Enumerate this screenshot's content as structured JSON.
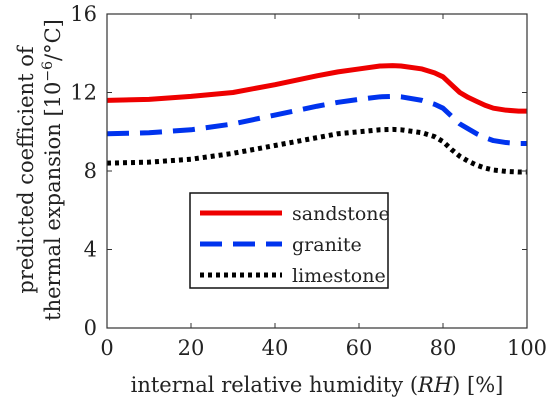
{
  "chart_data": {
    "type": "line",
    "xlabel_parts": {
      "pre": "internal relative humidity (",
      "italic": "RH",
      "post": ") [%]"
    },
    "ylabel_line1": "predicted coefficient of",
    "ylabel_line2_parts": {
      "pre": "thermal expansion [10",
      "sup": "−6",
      "post": "/°C]"
    },
    "xlim": [
      0,
      100
    ],
    "ylim": [
      0,
      16
    ],
    "x_ticks": [
      0,
      20,
      40,
      60,
      80,
      100
    ],
    "y_ticks": [
      0,
      4,
      8,
      12,
      16
    ],
    "grid": false,
    "legend_position": "lower-center",
    "series": [
      {
        "name": "sandstone",
        "color": "#ee0000",
        "dash": "solid",
        "x": [
          0,
          10,
          20,
          30,
          40,
          50,
          55,
          60,
          65,
          68,
          70,
          75,
          78,
          80,
          82,
          84,
          86,
          88,
          90,
          92,
          95,
          98,
          100
        ],
        "y": [
          11.6,
          11.65,
          11.8,
          12.0,
          12.4,
          12.85,
          13.05,
          13.2,
          13.35,
          13.37,
          13.35,
          13.2,
          13.0,
          12.8,
          12.4,
          12.0,
          11.75,
          11.55,
          11.35,
          11.2,
          11.1,
          11.05,
          11.05
        ]
      },
      {
        "name": "granite",
        "color": "#0033ee",
        "dash": "dashed",
        "x": [
          0,
          10,
          20,
          30,
          40,
          50,
          55,
          60,
          65,
          68,
          70,
          75,
          78,
          80,
          82,
          84,
          86,
          88,
          90,
          92,
          95,
          98,
          100
        ],
        "y": [
          9.9,
          9.95,
          10.1,
          10.4,
          10.85,
          11.3,
          11.5,
          11.65,
          11.78,
          11.8,
          11.78,
          11.6,
          11.4,
          11.2,
          10.8,
          10.4,
          10.15,
          9.9,
          9.7,
          9.55,
          9.45,
          9.4,
          9.4
        ]
      },
      {
        "name": "limestone",
        "color": "#000000",
        "dash": "dotted",
        "x": [
          0,
          10,
          20,
          30,
          40,
          50,
          55,
          60,
          65,
          68,
          70,
          75,
          78,
          80,
          82,
          84,
          86,
          88,
          90,
          92,
          95,
          98,
          100
        ],
        "y": [
          8.4,
          8.45,
          8.6,
          8.9,
          9.3,
          9.7,
          9.9,
          10.0,
          10.1,
          10.12,
          10.1,
          9.95,
          9.75,
          9.5,
          9.1,
          8.75,
          8.5,
          8.3,
          8.15,
          8.05,
          7.98,
          7.95,
          7.95
        ]
      }
    ]
  }
}
